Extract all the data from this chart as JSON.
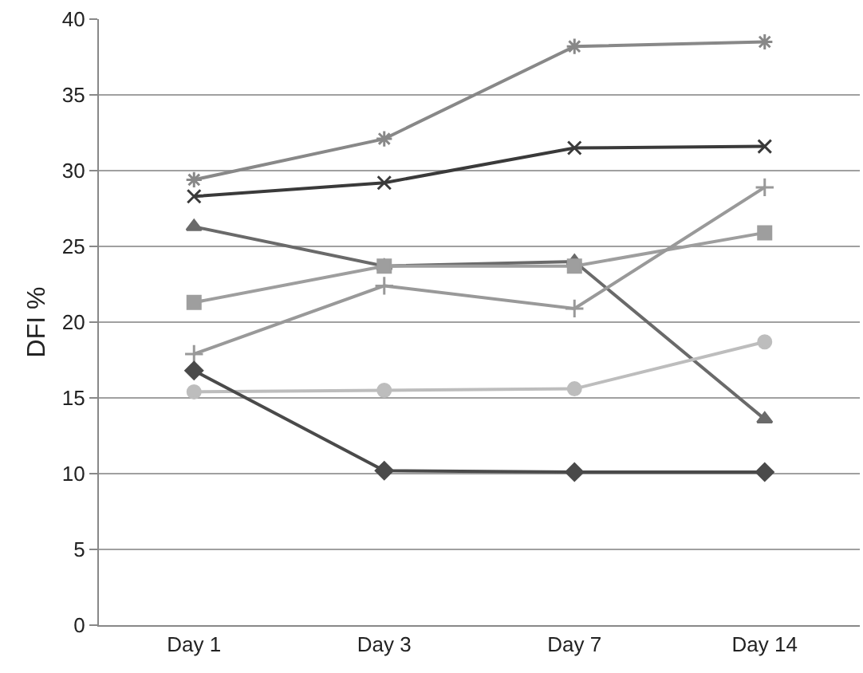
{
  "chart_data": {
    "type": "line",
    "ylabel": "DFI %",
    "categories": [
      "Day 1",
      "Day 3",
      "Day 7",
      "Day 14"
    ],
    "series": [
      {
        "color": "#888888",
        "marker": "cross",
        "values": [
          29.4,
          32.1,
          38.2,
          38.5
        ]
      },
      {
        "color": "#3a3a3a",
        "marker": "x",
        "values": [
          28.3,
          29.2,
          31.5,
          31.6
        ]
      },
      {
        "color": "#6a6a6a",
        "marker": "triangle",
        "values": [
          26.3,
          23.7,
          24.0,
          13.6
        ]
      },
      {
        "color": "#9e9e9e",
        "marker": "square",
        "values": [
          21.3,
          23.7,
          23.7,
          25.9
        ]
      },
      {
        "color": "#999999",
        "marker": "cross",
        "values": [
          17.9,
          22.4,
          20.9,
          28.9
        ]
      },
      {
        "color": "#bdbdbd",
        "marker": "circle",
        "values": [
          15.4,
          15.5,
          15.6,
          18.7
        ]
      },
      {
        "color": "#4a4a4a",
        "marker": "diamond",
        "values": [
          16.8,
          10.2,
          10.1,
          10.1
        ]
      }
    ],
    "ylim": [
      0,
      40
    ],
    "yticks": [
      0,
      5,
      10,
      15,
      20,
      25,
      30,
      35,
      40
    ],
    "grid": "y"
  }
}
